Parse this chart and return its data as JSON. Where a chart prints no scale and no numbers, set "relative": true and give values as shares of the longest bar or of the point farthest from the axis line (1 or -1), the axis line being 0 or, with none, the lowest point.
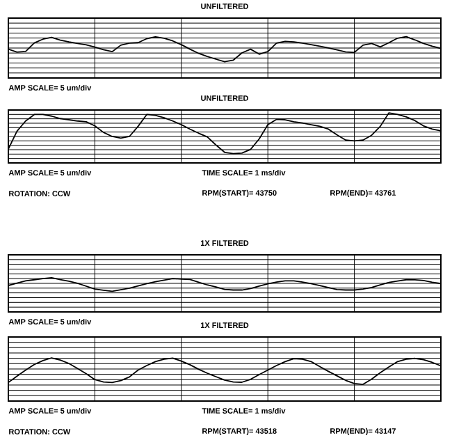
{
  "chart_data": [
    {
      "type": "line",
      "title": "UNFILTERED",
      "relative": true,
      "color": "#000000",
      "grid": true,
      "categories": [
        null,
        null,
        null,
        null,
        null,
        null,
        null,
        null,
        null,
        null,
        null,
        null,
        null,
        null,
        null,
        null,
        null,
        null,
        null,
        null,
        null,
        null,
        null,
        null,
        null,
        null,
        null,
        null,
        null,
        null,
        null,
        null,
        null,
        null,
        null,
        null,
        null,
        null,
        null,
        null,
        null,
        null,
        null,
        null,
        null,
        null,
        null,
        null,
        null,
        null,
        null
      ],
      "values": [
        0.5,
        0.38,
        0.41,
        0.75,
        0.9,
        0.97,
        0.86,
        0.79,
        0.73,
        0.67,
        0.58,
        0.48,
        0.4,
        0.66,
        0.74,
        0.76,
        0.92,
        0.99,
        0.94,
        0.83,
        0.68,
        0.5,
        0.33,
        0.21,
        0.1,
        0.0,
        0.06,
        0.35,
        0.5,
        0.3,
        0.4,
        0.74,
        0.81,
        0.79,
        0.74,
        0.68,
        0.62,
        0.55,
        0.47,
        0.39,
        0.37,
        0.66,
        0.73,
        0.59,
        0.76,
        0.94,
        1.0,
        0.87,
        0.73,
        0.62,
        0.53
      ],
      "annotations": [
        "AMP SCALE= 5 um/div"
      ]
    },
    {
      "type": "line",
      "title": "UNFILTERED",
      "relative": true,
      "color": "#000000",
      "grid": true,
      "categories": [
        null,
        null,
        null,
        null,
        null,
        null,
        null,
        null,
        null,
        null,
        null,
        null,
        null,
        null,
        null,
        null,
        null,
        null,
        null,
        null,
        null,
        null,
        null,
        null,
        null,
        null,
        null,
        null,
        null,
        null,
        null,
        null,
        null,
        null,
        null,
        null,
        null,
        null,
        null,
        null,
        null,
        null,
        null,
        null,
        null,
        null,
        null,
        null,
        null,
        null,
        null
      ],
      "values": [
        0.11,
        0.55,
        0.8,
        0.96,
        0.96,
        0.92,
        0.86,
        0.83,
        0.8,
        0.78,
        0.68,
        0.52,
        0.42,
        0.38,
        0.42,
        0.67,
        0.96,
        0.94,
        0.88,
        0.8,
        0.71,
        0.6,
        0.5,
        0.41,
        0.21,
        0.03,
        0.0,
        0.01,
        0.1,
        0.36,
        0.71,
        0.84,
        0.83,
        0.78,
        0.75,
        0.71,
        0.67,
        0.6,
        0.46,
        0.33,
        0.31,
        0.33,
        0.45,
        0.67,
        1.0,
        0.96,
        0.9,
        0.81,
        0.68,
        0.6,
        0.56
      ],
      "annotations": [
        "AMP SCALE= 5 um/div",
        "TIME SCALE= 1 ms/div",
        "ROTATION: CCW",
        "RPM(START)= 43750",
        "RPM(END)= 43761"
      ]
    },
    {
      "type": "line",
      "title": "1X FILTERED",
      "relative": true,
      "color": "#000000",
      "grid": true,
      "categories": [
        null,
        null,
        null,
        null,
        null,
        null,
        null,
        null,
        null,
        null,
        null,
        null,
        null,
        null,
        null,
        null,
        null,
        null,
        null,
        null,
        null,
        null,
        null,
        null,
        null,
        null,
        null,
        null,
        null,
        null,
        null,
        null,
        null,
        null,
        null,
        null,
        null,
        null,
        null,
        null,
        null,
        null,
        null,
        null,
        null,
        null,
        null,
        null,
        null,
        null,
        null
      ],
      "values": [
        0.43,
        0.6,
        0.77,
        0.85,
        0.93,
        1.0,
        0.86,
        0.74,
        0.59,
        0.38,
        0.17,
        0.08,
        0.0,
        0.12,
        0.23,
        0.4,
        0.57,
        0.7,
        0.82,
        0.93,
        0.9,
        0.87,
        0.67,
        0.47,
        0.32,
        0.15,
        0.1,
        0.1,
        0.21,
        0.39,
        0.55,
        0.68,
        0.77,
        0.77,
        0.68,
        0.56,
        0.43,
        0.28,
        0.13,
        0.1,
        0.1,
        0.17,
        0.29,
        0.47,
        0.65,
        0.76,
        0.85,
        0.84,
        0.79,
        0.67,
        0.57
      ],
      "annotations": [
        "AMP SCALE= 5 um/div"
      ]
    },
    {
      "type": "line",
      "title": "1X FILTERED",
      "relative": true,
      "color": "#000000",
      "grid": true,
      "categories": [
        null,
        null,
        null,
        null,
        null,
        null,
        null,
        null,
        null,
        null,
        null,
        null,
        null,
        null,
        null,
        null,
        null,
        null,
        null,
        null,
        null,
        null,
        null,
        null,
        null,
        null,
        null,
        null,
        null,
        null,
        null,
        null,
        null,
        null,
        null,
        null,
        null,
        null,
        null,
        null,
        null,
        null,
        null,
        null,
        null,
        null,
        null,
        null,
        null,
        null,
        null
      ],
      "values": [
        0.07,
        0.31,
        0.54,
        0.75,
        0.9,
        1.0,
        0.92,
        0.79,
        0.6,
        0.4,
        0.18,
        0.09,
        0.07,
        0.14,
        0.28,
        0.54,
        0.71,
        0.86,
        0.95,
        0.99,
        0.88,
        0.74,
        0.57,
        0.42,
        0.29,
        0.16,
        0.09,
        0.08,
        0.19,
        0.37,
        0.54,
        0.71,
        0.86,
        0.97,
        0.95,
        0.86,
        0.67,
        0.49,
        0.32,
        0.15,
        0.03,
        0.0,
        0.2,
        0.44,
        0.66,
        0.86,
        0.95,
        0.98,
        0.93,
        0.83,
        0.7
      ],
      "annotations": [
        "AMP SCALE= 5 um/div",
        "TIME SCALE= 1 ms/div",
        "ROTATION: CCW",
        "RPM(START)= 43518",
        "RPM(END)= 43147"
      ]
    }
  ]
}
